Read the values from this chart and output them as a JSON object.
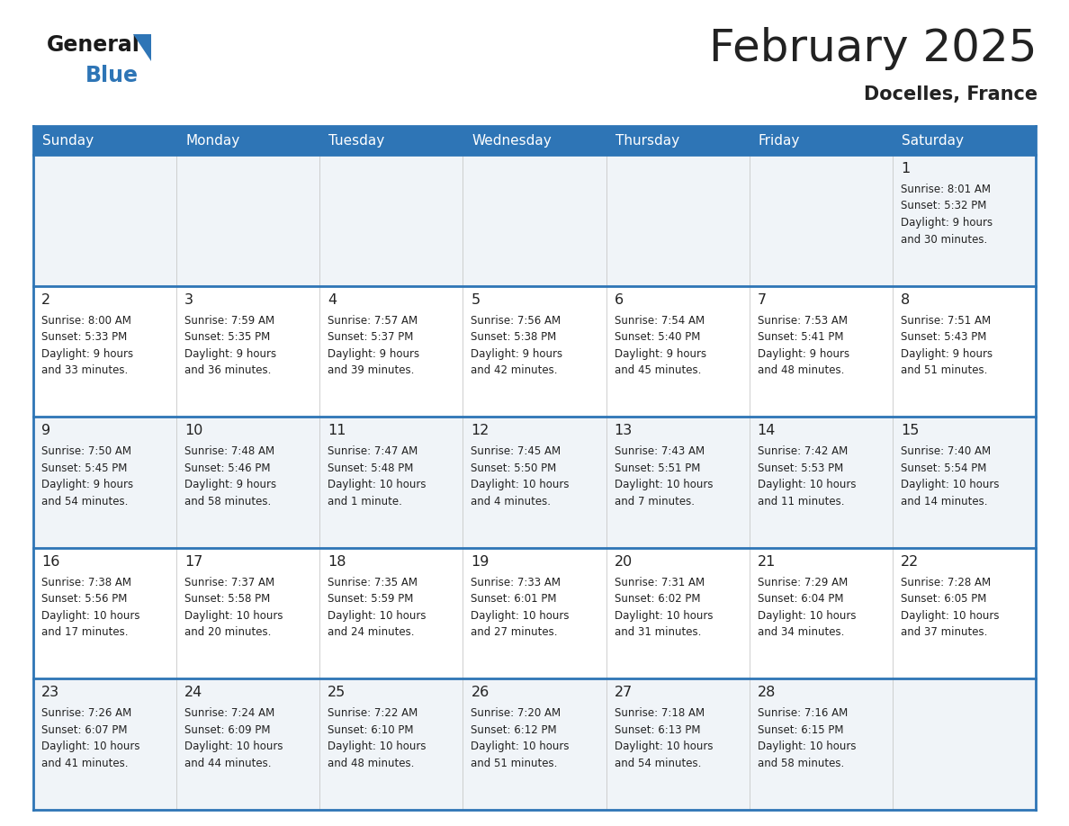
{
  "title": "February 2025",
  "subtitle": "Docelles, France",
  "header_bg": "#2E75B6",
  "header_text_color": "#FFFFFF",
  "cell_bg_light": "#F0F4F8",
  "cell_bg_white": "#FFFFFF",
  "border_color": "#2E75B6",
  "text_color": "#222222",
  "days_of_week": [
    "Sunday",
    "Monday",
    "Tuesday",
    "Wednesday",
    "Thursday",
    "Friday",
    "Saturday"
  ],
  "weeks": [
    [
      {
        "day": "",
        "info": ""
      },
      {
        "day": "",
        "info": ""
      },
      {
        "day": "",
        "info": ""
      },
      {
        "day": "",
        "info": ""
      },
      {
        "day": "",
        "info": ""
      },
      {
        "day": "",
        "info": ""
      },
      {
        "day": "1",
        "info": "Sunrise: 8:01 AM\nSunset: 5:32 PM\nDaylight: 9 hours\nand 30 minutes."
      }
    ],
    [
      {
        "day": "2",
        "info": "Sunrise: 8:00 AM\nSunset: 5:33 PM\nDaylight: 9 hours\nand 33 minutes."
      },
      {
        "day": "3",
        "info": "Sunrise: 7:59 AM\nSunset: 5:35 PM\nDaylight: 9 hours\nand 36 minutes."
      },
      {
        "day": "4",
        "info": "Sunrise: 7:57 AM\nSunset: 5:37 PM\nDaylight: 9 hours\nand 39 minutes."
      },
      {
        "day": "5",
        "info": "Sunrise: 7:56 AM\nSunset: 5:38 PM\nDaylight: 9 hours\nand 42 minutes."
      },
      {
        "day": "6",
        "info": "Sunrise: 7:54 AM\nSunset: 5:40 PM\nDaylight: 9 hours\nand 45 minutes."
      },
      {
        "day": "7",
        "info": "Sunrise: 7:53 AM\nSunset: 5:41 PM\nDaylight: 9 hours\nand 48 minutes."
      },
      {
        "day": "8",
        "info": "Sunrise: 7:51 AM\nSunset: 5:43 PM\nDaylight: 9 hours\nand 51 minutes."
      }
    ],
    [
      {
        "day": "9",
        "info": "Sunrise: 7:50 AM\nSunset: 5:45 PM\nDaylight: 9 hours\nand 54 minutes."
      },
      {
        "day": "10",
        "info": "Sunrise: 7:48 AM\nSunset: 5:46 PM\nDaylight: 9 hours\nand 58 minutes."
      },
      {
        "day": "11",
        "info": "Sunrise: 7:47 AM\nSunset: 5:48 PM\nDaylight: 10 hours\nand 1 minute."
      },
      {
        "day": "12",
        "info": "Sunrise: 7:45 AM\nSunset: 5:50 PM\nDaylight: 10 hours\nand 4 minutes."
      },
      {
        "day": "13",
        "info": "Sunrise: 7:43 AM\nSunset: 5:51 PM\nDaylight: 10 hours\nand 7 minutes."
      },
      {
        "day": "14",
        "info": "Sunrise: 7:42 AM\nSunset: 5:53 PM\nDaylight: 10 hours\nand 11 minutes."
      },
      {
        "day": "15",
        "info": "Sunrise: 7:40 AM\nSunset: 5:54 PM\nDaylight: 10 hours\nand 14 minutes."
      }
    ],
    [
      {
        "day": "16",
        "info": "Sunrise: 7:38 AM\nSunset: 5:56 PM\nDaylight: 10 hours\nand 17 minutes."
      },
      {
        "day": "17",
        "info": "Sunrise: 7:37 AM\nSunset: 5:58 PM\nDaylight: 10 hours\nand 20 minutes."
      },
      {
        "day": "18",
        "info": "Sunrise: 7:35 AM\nSunset: 5:59 PM\nDaylight: 10 hours\nand 24 minutes."
      },
      {
        "day": "19",
        "info": "Sunrise: 7:33 AM\nSunset: 6:01 PM\nDaylight: 10 hours\nand 27 minutes."
      },
      {
        "day": "20",
        "info": "Sunrise: 7:31 AM\nSunset: 6:02 PM\nDaylight: 10 hours\nand 31 minutes."
      },
      {
        "day": "21",
        "info": "Sunrise: 7:29 AM\nSunset: 6:04 PM\nDaylight: 10 hours\nand 34 minutes."
      },
      {
        "day": "22",
        "info": "Sunrise: 7:28 AM\nSunset: 6:05 PM\nDaylight: 10 hours\nand 37 minutes."
      }
    ],
    [
      {
        "day": "23",
        "info": "Sunrise: 7:26 AM\nSunset: 6:07 PM\nDaylight: 10 hours\nand 41 minutes."
      },
      {
        "day": "24",
        "info": "Sunrise: 7:24 AM\nSunset: 6:09 PM\nDaylight: 10 hours\nand 44 minutes."
      },
      {
        "day": "25",
        "info": "Sunrise: 7:22 AM\nSunset: 6:10 PM\nDaylight: 10 hours\nand 48 minutes."
      },
      {
        "day": "26",
        "info": "Sunrise: 7:20 AM\nSunset: 6:12 PM\nDaylight: 10 hours\nand 51 minutes."
      },
      {
        "day": "27",
        "info": "Sunrise: 7:18 AM\nSunset: 6:13 PM\nDaylight: 10 hours\nand 54 minutes."
      },
      {
        "day": "28",
        "info": "Sunrise: 7:16 AM\nSunset: 6:15 PM\nDaylight: 10 hours\nand 58 minutes."
      },
      {
        "day": "",
        "info": ""
      }
    ]
  ],
  "logo_general_color": "#1a1a1a",
  "logo_blue_color": "#2E75B6",
  "logo_triangle_color": "#2E75B6"
}
